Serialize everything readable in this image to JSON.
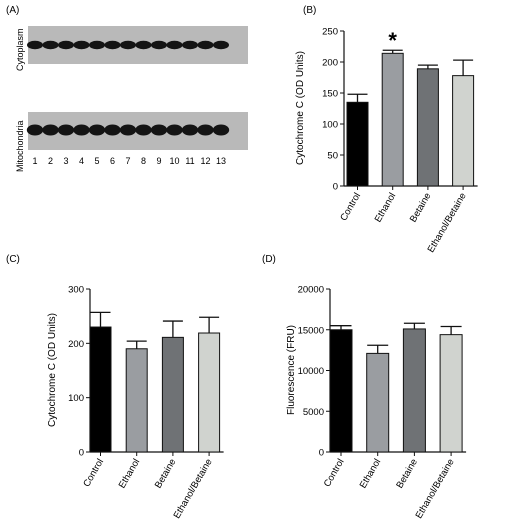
{
  "panels": {
    "a_label": "(A)",
    "b_label": "(B)",
    "c_label": "(C)",
    "d_label": "(D)"
  },
  "blot": {
    "top_label": "Cytoplasm",
    "bottom_label": "Mitochondria",
    "lanes": [
      "1",
      "2",
      "3",
      "4",
      "5",
      "6",
      "7",
      "8",
      "9",
      "10",
      "11",
      "12",
      "13"
    ],
    "colors": {
      "background": "#b9b9b9",
      "band": "#141414"
    }
  },
  "colors": {
    "Control": "#000000",
    "Ethanol": "#9a9da1",
    "Betaine": "#6f7275",
    "Ethanol/Betaine": "#d0d3cf",
    "axis": "#111111"
  },
  "chart_data": [
    {
      "type": "bar",
      "panel": "(B)",
      "categories": [
        "Control",
        "Ethanol",
        "Betaine",
        "Ethanol/Betaine"
      ],
      "values": [
        135,
        214,
        189,
        178
      ],
      "errors": [
        13,
        5,
        6,
        25
      ],
      "title": "",
      "xlabel": "",
      "ylabel": "Cytochrome C (OD Units)",
      "ylim": [
        0,
        250
      ],
      "yticks": [
        0,
        50,
        100,
        150,
        200,
        250
      ],
      "annotations": [
        {
          "category": "Ethanol",
          "text": "*"
        }
      ],
      "grid": false
    },
    {
      "type": "bar",
      "panel": "(C)",
      "categories": [
        "Control",
        "Ethanol",
        "Betaine",
        "Ethanol/Betaine"
      ],
      "values": [
        230,
        190,
        211,
        219
      ],
      "errors": [
        27,
        14,
        30,
        29
      ],
      "title": "",
      "xlabel": "",
      "ylabel": "Cytochrome C (OD Units)",
      "ylim": [
        0,
        300
      ],
      "yticks": [
        0,
        100,
        200,
        300
      ],
      "grid": false
    },
    {
      "type": "bar",
      "panel": "(D)",
      "categories": [
        "Control",
        "Ethanol",
        "Betaine",
        "Ethanol/Betaine"
      ],
      "values": [
        15000,
        12100,
        15100,
        14400
      ],
      "errors": [
        500,
        1000,
        700,
        1000
      ],
      "title": "",
      "xlabel": "",
      "ylabel": "Fluorescence (FRU)",
      "ylim": [
        0,
        20000
      ],
      "yticks": [
        0,
        5000,
        10000,
        15000,
        20000
      ],
      "grid": false
    }
  ]
}
